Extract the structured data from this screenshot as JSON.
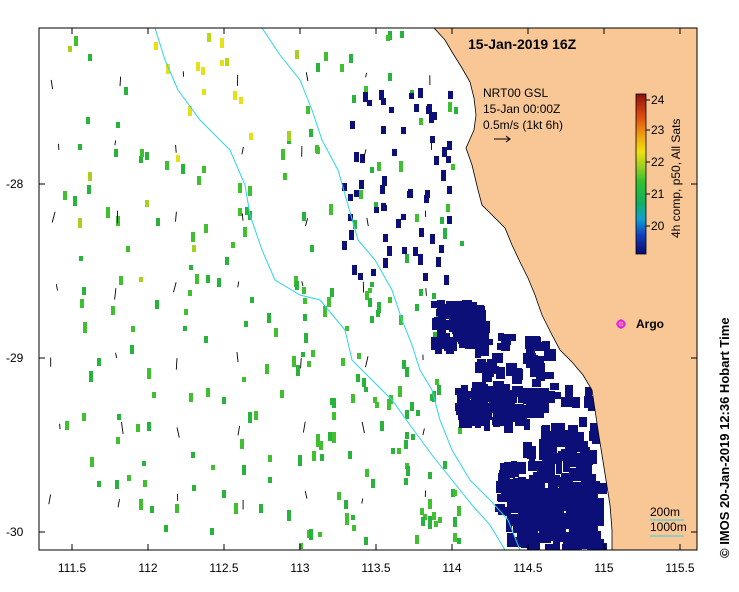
{
  "map": {
    "title": "15-Jan-2019 16Z",
    "current_product": "NRT00 GSL",
    "current_time": "15-Jan 00:00Z",
    "current_scale": "0.5m/s (1kt 6h)",
    "colorbar_label": "4h comp, p50, All Sats",
    "colorbar_ticks": [
      "20",
      "21",
      "22",
      "23",
      "24"
    ],
    "colorbar_range": [
      19.5,
      24.3
    ],
    "argo_label": "Argo",
    "contour_labels": [
      "200m",
      "1000m"
    ],
    "side_credit": "© IMOS 20-Jan-2019 12:36 Hobart Time",
    "x_ticks": [
      "111.5",
      "112",
      "112.5",
      "113",
      "113.5",
      "114",
      "114.5",
      "115",
      "115.5"
    ],
    "y_ticks": [
      "-28",
      "-29",
      "-30"
    ],
    "colors": {
      "land": "#f9c796",
      "sst_warm": "#e6e016",
      "sst_green": "#28b43c",
      "sst_cold": "#0d0f78",
      "contour": "#2cd6e6",
      "argo": "#e020e0"
    }
  }
}
